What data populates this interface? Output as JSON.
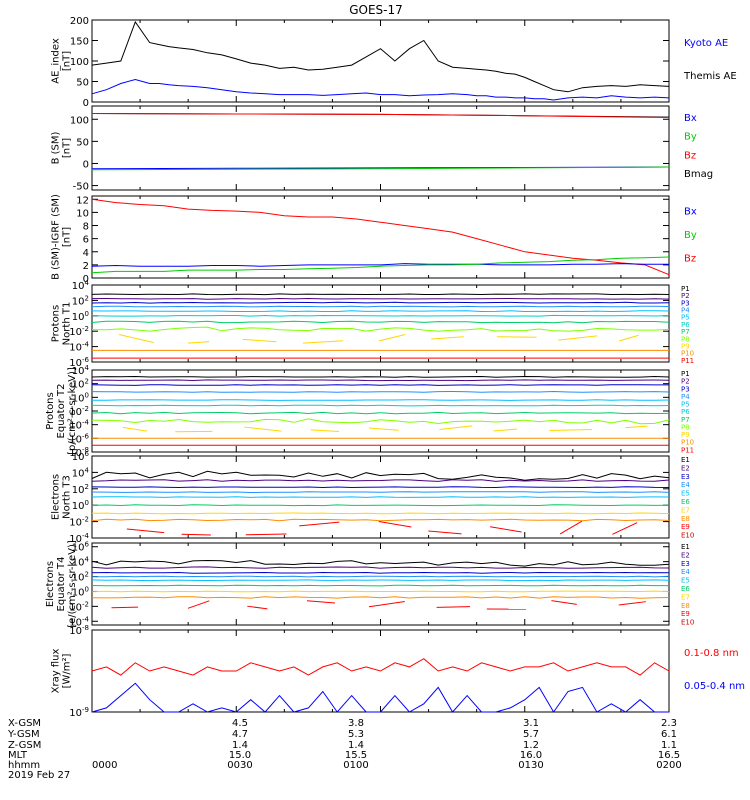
{
  "title": "GOES-17",
  "colors": {
    "black": "#000000",
    "blue": "#0000ff",
    "green": "#00cc00",
    "red": "#ff0000"
  },
  "chart_data": [
    {
      "type": "line",
      "id": "ae",
      "ylabel": [
        "AE_index",
        "[nT]"
      ],
      "yticks": [
        "200",
        "150",
        "100",
        "50",
        "0"
      ],
      "ylim": [
        0,
        200
      ],
      "scale": "linear",
      "legend": [
        {
          "name": "Kyoto AE",
          "color": "#0000ff"
        },
        {
          "name": "Themis AE",
          "color": "#000000"
        }
      ],
      "x_minutes": [
        0,
        3,
        6,
        9,
        12,
        14,
        16,
        18,
        21,
        24,
        27,
        30,
        33,
        36,
        39,
        42,
        45,
        48,
        51,
        54,
        57,
        60,
        63,
        66,
        69,
        72,
        75,
        78,
        80,
        82,
        84,
        86,
        88,
        90,
        92,
        94,
        96,
        99,
        102,
        105,
        108,
        111,
        114,
        117,
        120
      ],
      "series": [
        {
          "name": "Themis AE",
          "color": "#000000",
          "values": [
            90,
            95,
            100,
            195,
            145,
            140,
            135,
            132,
            128,
            120,
            115,
            105,
            95,
            90,
            82,
            85,
            78,
            80,
            85,
            90,
            110,
            130,
            100,
            130,
            150,
            100,
            85,
            82,
            80,
            78,
            75,
            70,
            68,
            60,
            50,
            40,
            30,
            25,
            35,
            38,
            40,
            38,
            42,
            40,
            38
          ]
        },
        {
          "name": "Kyoto AE",
          "color": "#0000ff",
          "values": [
            20,
            30,
            45,
            55,
            45,
            45,
            42,
            40,
            38,
            35,
            30,
            25,
            22,
            20,
            18,
            18,
            18,
            16,
            18,
            20,
            22,
            18,
            18,
            15,
            17,
            18,
            20,
            18,
            15,
            15,
            12,
            12,
            10,
            10,
            8,
            8,
            5,
            10,
            12,
            10,
            15,
            12,
            10,
            12,
            10
          ]
        }
      ]
    },
    {
      "type": "line",
      "id": "bsm",
      "ylabel": [
        "B (SM)",
        "[nT]"
      ],
      "yticks": [
        "100",
        "50",
        "0",
        "-50"
      ],
      "ylim": [
        -60,
        130
      ],
      "scale": "linear",
      "legend": [
        {
          "name": "Bx",
          "color": "#0000ff"
        },
        {
          "name": "By",
          "color": "#00cc00"
        },
        {
          "name": "Bz",
          "color": "#ff0000"
        },
        {
          "name": "Bmag",
          "color": "#000000"
        }
      ],
      "x_minutes": [
        0,
        30,
        60,
        90,
        120
      ],
      "series": [
        {
          "name": "Bmag",
          "color": "#000000",
          "values": [
            113,
            112,
            111,
            108,
            105
          ]
        },
        {
          "name": "Bz",
          "color": "#ff0000",
          "values": [
            113,
            112,
            111,
            108,
            104
          ]
        },
        {
          "name": "Bx",
          "color": "#0000ff",
          "values": [
            -12,
            -11,
            -10,
            -9,
            -8
          ]
        },
        {
          "name": "By",
          "color": "#00cc00",
          "values": [
            -14,
            -13,
            -12,
            -10,
            -8
          ]
        }
      ]
    },
    {
      "type": "line",
      "id": "bigrf",
      "ylabel": [
        "B (SM)-IGRF (SM)",
        "[nT]"
      ],
      "yticks": [
        "12",
        "10",
        "8",
        "6",
        "4",
        "2",
        "0"
      ],
      "ylim": [
        0,
        12.5
      ],
      "scale": "linear",
      "legend": [
        {
          "name": "Bx",
          "color": "#0000ff"
        },
        {
          "name": "By",
          "color": "#00cc00"
        },
        {
          "name": "Bz",
          "color": "#ff0000"
        }
      ],
      "x_minutes": [
        0,
        5,
        10,
        15,
        20,
        25,
        30,
        35,
        40,
        45,
        50,
        55,
        60,
        65,
        70,
        75,
        80,
        85,
        90,
        95,
        100,
        105,
        110,
        115,
        120
      ],
      "series": [
        {
          "name": "Bz",
          "color": "#ff0000",
          "values": [
            12,
            11.5,
            11.2,
            11,
            10.5,
            10.3,
            10.2,
            10,
            9.5,
            9.3,
            9.3,
            9,
            8.5,
            8,
            7.5,
            7,
            6,
            5,
            4,
            3.5,
            3,
            2.7,
            2.3,
            2,
            0.5
          ]
        },
        {
          "name": "Bx",
          "color": "#0000ff",
          "values": [
            1.8,
            1.9,
            1.8,
            1.8,
            1.8,
            1.9,
            1.9,
            1.8,
            1.9,
            2,
            2,
            2,
            2,
            2.2,
            2.1,
            2.1,
            2.1,
            2,
            2,
            2,
            2.1,
            2.1,
            2.2,
            2.1,
            2.1
          ]
        },
        {
          "name": "By",
          "color": "#00cc00",
          "values": [
            0.8,
            1,
            1,
            1,
            1.2,
            1.2,
            1.2,
            1.3,
            1.3,
            1.4,
            1.5,
            1.6,
            1.8,
            1.9,
            2,
            2,
            2.1,
            2.3,
            2.4,
            2.5,
            2.7,
            2.8,
            3,
            3.1,
            3.2
          ]
        }
      ]
    },
    {
      "type": "line",
      "id": "pnorth",
      "ylabel": [
        "Protons",
        "North T1"
      ],
      "yticks": [
        "10^4",
        "10^2",
        "10^0",
        "10^-2",
        "10^-4",
        "10^-6"
      ],
      "ylim": [
        -6,
        4
      ],
      "scale": "log",
      "legend_labels": [
        "P1",
        "P2",
        "P3",
        "P4",
        "P5",
        "P6",
        "P7",
        "P8",
        "P9",
        "P10",
        "P11"
      ],
      "legend_colors": [
        "#000000",
        "#4b0082",
        "#0000cd",
        "#1e90ff",
        "#00bfff",
        "#00ced1",
        "#00cd66",
        "#7fff00",
        "#ffd700",
        "#ff8c00",
        "#ff0000"
      ],
      "levels": [
        2.8,
        2.2,
        1.7,
        1.2,
        0.6,
        0.0,
        -0.8,
        -1.8,
        -3.0,
        -4.5,
        -5.5
      ],
      "noise": [
        0.05,
        0.05,
        0.05,
        0.05,
        0.05,
        0.05,
        0.1,
        0.25,
        0.6,
        0,
        0
      ],
      "gaps": [
        false,
        false,
        false,
        false,
        false,
        false,
        false,
        false,
        true,
        false,
        false
      ]
    },
    {
      "type": "line",
      "id": "pequator",
      "ylabel": [
        "Protons",
        "Equator T2",
        "[p/(cm²-s-sr-keV)]"
      ],
      "yticks": [
        "10^4",
        "10^2",
        "10^0",
        "10^-2",
        "10^-4",
        "10^-6",
        "10^-8"
      ],
      "ylim": [
        -8,
        4
      ],
      "scale": "log",
      "legend_labels": [
        "P1",
        "P2",
        "P3",
        "P4",
        "P5",
        "P6",
        "P7",
        "P8",
        "P9",
        "P10",
        "P11"
      ],
      "legend_colors": [
        "#000000",
        "#4b0082",
        "#0000cd",
        "#1e90ff",
        "#00bfff",
        "#00ced1",
        "#00cd66",
        "#7fff00",
        "#ffd700",
        "#ff8c00",
        "#ff0000"
      ],
      "levels": [
        3.0,
        2.5,
        1.8,
        0.8,
        -0.4,
        -1.2,
        -2.3,
        -3.5,
        -4.6,
        -6.0,
        -7.0
      ],
      "noise": [
        0.05,
        0.05,
        0.05,
        0.05,
        0.05,
        0.05,
        0.1,
        0.3,
        0.5,
        0,
        0
      ],
      "gaps": [
        false,
        false,
        false,
        false,
        false,
        false,
        false,
        false,
        true,
        false,
        false
      ]
    },
    {
      "type": "line",
      "id": "enorth",
      "ylabel": [
        "Electrons",
        "North T3"
      ],
      "yticks": [
        "10^6",
        "10^4",
        "10^2",
        "10^0",
        "10^-2",
        "10^-4"
      ],
      "ylim": [
        -4,
        6
      ],
      "scale": "log",
      "legend_labels": [
        "E1",
        "E2",
        "E3",
        "E4",
        "E5",
        "E6",
        "E7",
        "E8",
        "E9",
        "E10"
      ],
      "legend_colors": [
        "#000000",
        "#4b0082",
        "#0000cd",
        "#1e90ff",
        "#00bfff",
        "#00cd66",
        "#ffd700",
        "#ff8c00",
        "#ff0000",
        "#cc0000"
      ],
      "levels": [
        3.6,
        3.0,
        2.2,
        1.6,
        1.0,
        0.0,
        -1.0,
        -1.8,
        -2.8,
        -5
      ],
      "noise": [
        0.4,
        0.1,
        0.05,
        0.05,
        0.05,
        0.05,
        0.05,
        0.1,
        0.9,
        0
      ],
      "gaps": [
        false,
        false,
        false,
        false,
        false,
        false,
        false,
        false,
        true,
        false
      ]
    },
    {
      "type": "line",
      "id": "eequator",
      "ylabel": [
        "Electrons",
        "Equator T4",
        "[e/(cm²-s-sr-keV)]"
      ],
      "yticks": [
        "10^6",
        "10^4",
        "10^2",
        "10^0",
        "10^-2",
        "10^-4"
      ],
      "ylim": [
        -4.5,
        6.5
      ],
      "scale": "log",
      "legend_labels": [
        "E1",
        "E2",
        "E3",
        "E4",
        "E5",
        "E6",
        "E7",
        "E8",
        "E9",
        "E10"
      ],
      "legend_colors": [
        "#000000",
        "#4b0082",
        "#0000cd",
        "#1e90ff",
        "#00bfff",
        "#00cd66",
        "#ffd700",
        "#ff8c00",
        "#ff0000",
        "#cc0000"
      ],
      "levels": [
        3.8,
        3.2,
        2.5,
        2.0,
        1.5,
        0.8,
        0.0,
        -0.8,
        -1.8,
        -5
      ],
      "noise": [
        0.3,
        0.1,
        0.05,
        0.05,
        0.05,
        0.05,
        0.05,
        0.1,
        0.6,
        0
      ],
      "gaps": [
        false,
        false,
        false,
        false,
        false,
        false,
        false,
        false,
        true,
        false
      ]
    },
    {
      "type": "line",
      "id": "xray",
      "ylabel": [
        "Xray flux",
        "[W/m²]"
      ],
      "yticks": [
        "10^-8",
        "10^-9"
      ],
      "ylim": [
        -9,
        -8
      ],
      "scale": "log",
      "legend": [
        {
          "name": "0.1-0.8 nm",
          "color": "#ff0000"
        },
        {
          "name": "0.05-0.4 nm",
          "color": "#0000ff"
        }
      ],
      "x_minutes": [
        0,
        3,
        6,
        9,
        12,
        15,
        18,
        21,
        24,
        27,
        30,
        33,
        36,
        39,
        42,
        45,
        48,
        51,
        54,
        57,
        60,
        63,
        66,
        69,
        72,
        75,
        78,
        81,
        84,
        87,
        90,
        93,
        96,
        99,
        102,
        105,
        108,
        111,
        114,
        117,
        120
      ],
      "series": [
        {
          "name": "0.1-0.8 nm",
          "color": "#ff0000",
          "values": [
            -8.5,
            -8.45,
            -8.55,
            -8.4,
            -8.5,
            -8.45,
            -8.5,
            -8.55,
            -8.45,
            -8.5,
            -8.5,
            -8.4,
            -8.45,
            -8.5,
            -8.45,
            -8.55,
            -8.45,
            -8.4,
            -8.5,
            -8.45,
            -8.5,
            -8.4,
            -8.45,
            -8.35,
            -8.5,
            -8.45,
            -8.5,
            -8.4,
            -8.45,
            -8.5,
            -8.45,
            -8.45,
            -8.4,
            -8.5,
            -8.45,
            -8.4,
            -8.45,
            -8.45,
            -8.55,
            -8.4,
            -8.5
          ]
        },
        {
          "name": "0.05-0.4 nm",
          "color": "#0000ff",
          "values": [
            -9.0,
            -8.95,
            -8.8,
            -8.65,
            -8.85,
            -9.0,
            -9.0,
            -8.9,
            -9.0,
            -8.95,
            -9.0,
            -8.85,
            -9.0,
            -8.8,
            -9.0,
            -8.95,
            -8.75,
            -9.0,
            -8.8,
            -9.0,
            -9.0,
            -8.8,
            -9.0,
            -8.9,
            -8.7,
            -9.0,
            -8.8,
            -9.0,
            -9.0,
            -8.95,
            -8.85,
            -8.7,
            -9.0,
            -8.75,
            -8.7,
            -9.0,
            -8.9,
            -9.0,
            -8.85,
            -9.0,
            -9.0
          ]
        }
      ]
    }
  ],
  "footer": {
    "rows": [
      {
        "label": "X-GSM",
        "values": [
          "4.5",
          "3.8",
          "3.1",
          "2.3"
        ]
      },
      {
        "label": "Y-GSM",
        "values": [
          "4.7",
          "5.3",
          "5.7",
          "6.1"
        ]
      },
      {
        "label": "Z-GSM",
        "values": [
          "1.4",
          "1.4",
          "1.2",
          "1.1"
        ]
      },
      {
        "label": "MLT",
        "values": [
          "15.0",
          "15.5",
          "16.0",
          "16.5"
        ]
      },
      {
        "label": "hhmm",
        "values": [
          "0000",
          "0030",
          "0100",
          "0130",
          "0200"
        ]
      }
    ],
    "date": "2019 Feb 27"
  }
}
